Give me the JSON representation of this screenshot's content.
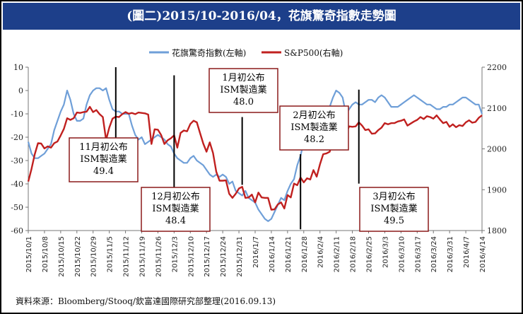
{
  "title": "(圖二)2015/10-2016/04，花旗驚奇指數走勢圖",
  "source": "資料來源：Bloomberg/Stooq/欽富達國際研究部整理(2016.09.13)",
  "colors": {
    "title_bg": "#1d3f8a",
    "citi": "#6f9fd8",
    "sp500": "#c0201f",
    "annotation_border": "#8b1a1a"
  },
  "chart_data": {
    "type": "line",
    "x_tick_labels": [
      "2015/10/1",
      "2015/10/8",
      "2015/10/15",
      "2015/10/22",
      "2015/10/29",
      "2015/11/5",
      "2015/11/12",
      "2015/11/19",
      "2015/11/26",
      "2015/12/3",
      "2015/12/10",
      "2015/12/17",
      "2015/12/24",
      "2015/12/31",
      "2016/1/7",
      "2016/1/14",
      "2016/1/21",
      "2016/1/28",
      "2016/2/4",
      "2016/2/11",
      "2016/2/18",
      "2016/2/25",
      "2016/3/3",
      "2016/3/10",
      "2016/3/17",
      "2016/3/24",
      "2016/3/31",
      "2016/4/7",
      "2016/4/14"
    ],
    "y_left": {
      "min": -60,
      "max": 10,
      "ticks": [
        10,
        0,
        -10,
        -20,
        -30,
        -40,
        -50,
        -60
      ]
    },
    "y_right": {
      "min": 1800,
      "max": 2200,
      "ticks": [
        2200,
        2100,
        2000,
        1900,
        1800
      ]
    },
    "series": [
      {
        "name": "花旗驚奇指數(左軸)",
        "axis": "left",
        "color": "#6f9fd8",
        "x": [
          0,
          1,
          2,
          3,
          4,
          5,
          6,
          7,
          8,
          9,
          10,
          11,
          12,
          13,
          14,
          15,
          16,
          17,
          18,
          19,
          20,
          21,
          22,
          23,
          24,
          25,
          26,
          27,
          28,
          29,
          30,
          31,
          32,
          33,
          34,
          35,
          36,
          37,
          38,
          39,
          40,
          41,
          42,
          43,
          44,
          45,
          46,
          47,
          48,
          49,
          50,
          51,
          52,
          53,
          54,
          55,
          56,
          57,
          58,
          59,
          60,
          61,
          62,
          63,
          64,
          65,
          66,
          67,
          68,
          69,
          70,
          71,
          72,
          73,
          74,
          75,
          76,
          77,
          78,
          79,
          80,
          81,
          82,
          83,
          84,
          85,
          86,
          87,
          88,
          89,
          90,
          91,
          92,
          93,
          94,
          95,
          96,
          97,
          98,
          99,
          100,
          101,
          102,
          103,
          104,
          105,
          106,
          107,
          108,
          109,
          110,
          111,
          112,
          113,
          114,
          115,
          116,
          117,
          118,
          119,
          120,
          121,
          122,
          123,
          124,
          125,
          126,
          127,
          128,
          129,
          130,
          131,
          132,
          133,
          134,
          135,
          136,
          137,
          138,
          139,
          140
        ],
        "y": [
          -22,
          -27,
          -29,
          -29,
          -28,
          -27,
          -25,
          -23,
          -17,
          -13,
          -9,
          -6,
          0,
          -4,
          -10,
          -13,
          -13,
          -12,
          -6,
          -2,
          0,
          1,
          1,
          0,
          1,
          -4,
          -8,
          -9,
          -9,
          -10,
          -10,
          -10,
          -15,
          -19,
          -21,
          -20,
          -23,
          -22,
          -21,
          -20,
          -19,
          -20,
          -21,
          -23,
          -24,
          -27,
          -29,
          -30,
          -31,
          -31,
          -29,
          -28,
          -30,
          -31,
          -32,
          -34,
          -36,
          -37,
          -36,
          -37,
          -36,
          -37,
          -40,
          -39,
          -43,
          -44,
          -45,
          -43,
          -46,
          -47,
          -48,
          -51,
          -53,
          -55,
          -56,
          -55,
          -52,
          -49,
          -46,
          -47,
          -43,
          -40,
          -38,
          -32,
          -28,
          -22,
          -16,
          -12,
          -7,
          -12,
          -13,
          -12,
          -12,
          -7,
          -3,
          0,
          -1,
          -3,
          -10,
          -8,
          -6,
          -5,
          -6,
          -6,
          -5,
          -4,
          -4,
          -5,
          -3,
          -2,
          -3,
          -5,
          -7,
          -7,
          -7,
          -6,
          -5,
          -4,
          -3,
          -2,
          -3,
          -4,
          -5,
          -6,
          -6,
          -7,
          -8,
          -8,
          -7,
          -7,
          -6,
          -6,
          -5,
          -4,
          -3,
          -3,
          -4,
          -5,
          -6,
          -6,
          -10
        ]
      },
      {
        "name": "S&P500(右軸)",
        "axis": "right",
        "color": "#c0201f",
        "x": [
          0,
          1,
          2,
          3,
          4,
          5,
          6,
          7,
          8,
          9,
          10,
          11,
          12,
          13,
          14,
          15,
          16,
          17,
          18,
          19,
          20,
          21,
          22,
          23,
          24,
          25,
          26,
          27,
          28,
          29,
          30,
          31,
          32,
          33,
          34,
          35,
          36,
          37,
          38,
          39,
          40,
          41,
          42,
          43,
          44,
          45,
          46,
          47,
          48,
          49,
          50,
          51,
          52,
          53,
          54,
          55,
          56,
          57,
          58,
          59,
          60,
          61,
          62,
          63,
          64,
          65,
          66,
          67,
          68,
          69,
          70,
          71,
          72,
          73,
          74,
          75,
          76,
          77,
          78,
          79,
          80,
          81,
          82,
          83,
          84,
          85,
          86,
          87,
          88,
          89,
          90,
          91,
          92,
          93,
          94,
          95,
          96,
          97,
          98,
          99,
          100,
          101,
          102,
          103,
          104,
          105,
          106,
          107,
          108,
          109,
          110,
          111,
          112,
          113,
          114,
          115,
          116,
          117,
          118,
          119,
          120,
          121,
          122,
          123,
          124,
          125,
          126,
          127,
          128,
          129,
          130,
          131,
          132,
          133,
          134,
          135,
          136,
          137,
          138,
          139,
          140
        ],
        "y": [
          1920,
          1951,
          1987,
          2014,
          2013,
          2001,
          2006,
          2003,
          2014,
          2018,
          2033,
          2049,
          2075,
          2071,
          2075,
          2089,
          2088,
          2090,
          2091,
          2103,
          2090,
          2095,
          2085,
          2078,
          2022,
          2052,
          2074,
          2079,
          2078,
          2085,
          2090,
          2086,
          2088,
          2085,
          2089,
          2088,
          2087,
          2084,
          2012,
          2048,
          2047,
          2034,
          2012,
          2021,
          2026,
          2033,
          2003,
          2039,
          2045,
          2043,
          2061,
          2069,
          2065,
          2039,
          2013,
          1993,
          2016,
          1990,
          1944,
          1922,
          1922,
          1923,
          1890,
          1880,
          1890,
          1903,
          1907,
          1880,
          1881,
          1888,
          1869,
          1893,
          1881,
          1880,
          1880,
          1851,
          1852,
          1864,
          1869,
          1854,
          1887,
          1881,
          1915,
          1911,
          1930,
          1918,
          1928,
          1925,
          1948,
          1932,
          1962,
          1987,
          1989,
          1993,
          2022,
          2017,
          2017,
          2036,
          2037,
          2055,
          2054,
          2055,
          2065,
          2057,
          2046,
          2048,
          2037,
          2038,
          2046,
          2052,
          2063,
          2060,
          2063,
          2063,
          2067,
          2069,
          2072,
          2057,
          2062,
          2067,
          2071,
          2078,
          2073,
          2080,
          2078,
          2074,
          2082,
          2072,
          2063,
          2066,
          2054,
          2060,
          2053,
          2058,
          2056,
          2065,
          2070,
          2064,
          2066,
          2076,
          2082
        ]
      }
    ],
    "vertical_markers": [
      {
        "x": 27,
        "y_top": 2200,
        "y_bottom": 1962
      },
      {
        "x": 45,
        "y_top": 2180,
        "y_bottom": 1838
      },
      {
        "x": 66,
        "y_top": 2078,
        "y_bottom": 1912
      },
      {
        "x": 84,
        "y_top": 1987,
        "y_bottom": 1803
      },
      {
        "x": 102,
        "y_top": 2145,
        "y_bottom": 1915
      }
    ],
    "annotations": [
      {
        "lines": [
          "11月初公布",
          "ISM製造業",
          "49.4"
        ],
        "pos": "left-middle"
      },
      {
        "lines": [
          "12月初公布",
          "ISM製造業",
          "48.4"
        ],
        "pos": "lower-left-center"
      },
      {
        "lines": [
          "1月初公布",
          "ISM製造業",
          "48.0"
        ],
        "pos": "upper-center"
      },
      {
        "lines": [
          "2月初公布",
          "ISM製造業",
          "48.2"
        ],
        "pos": "center-right"
      },
      {
        "lines": [
          "3月初公布",
          "ISM製造業",
          "49.5"
        ],
        "pos": "lower-right"
      }
    ]
  }
}
